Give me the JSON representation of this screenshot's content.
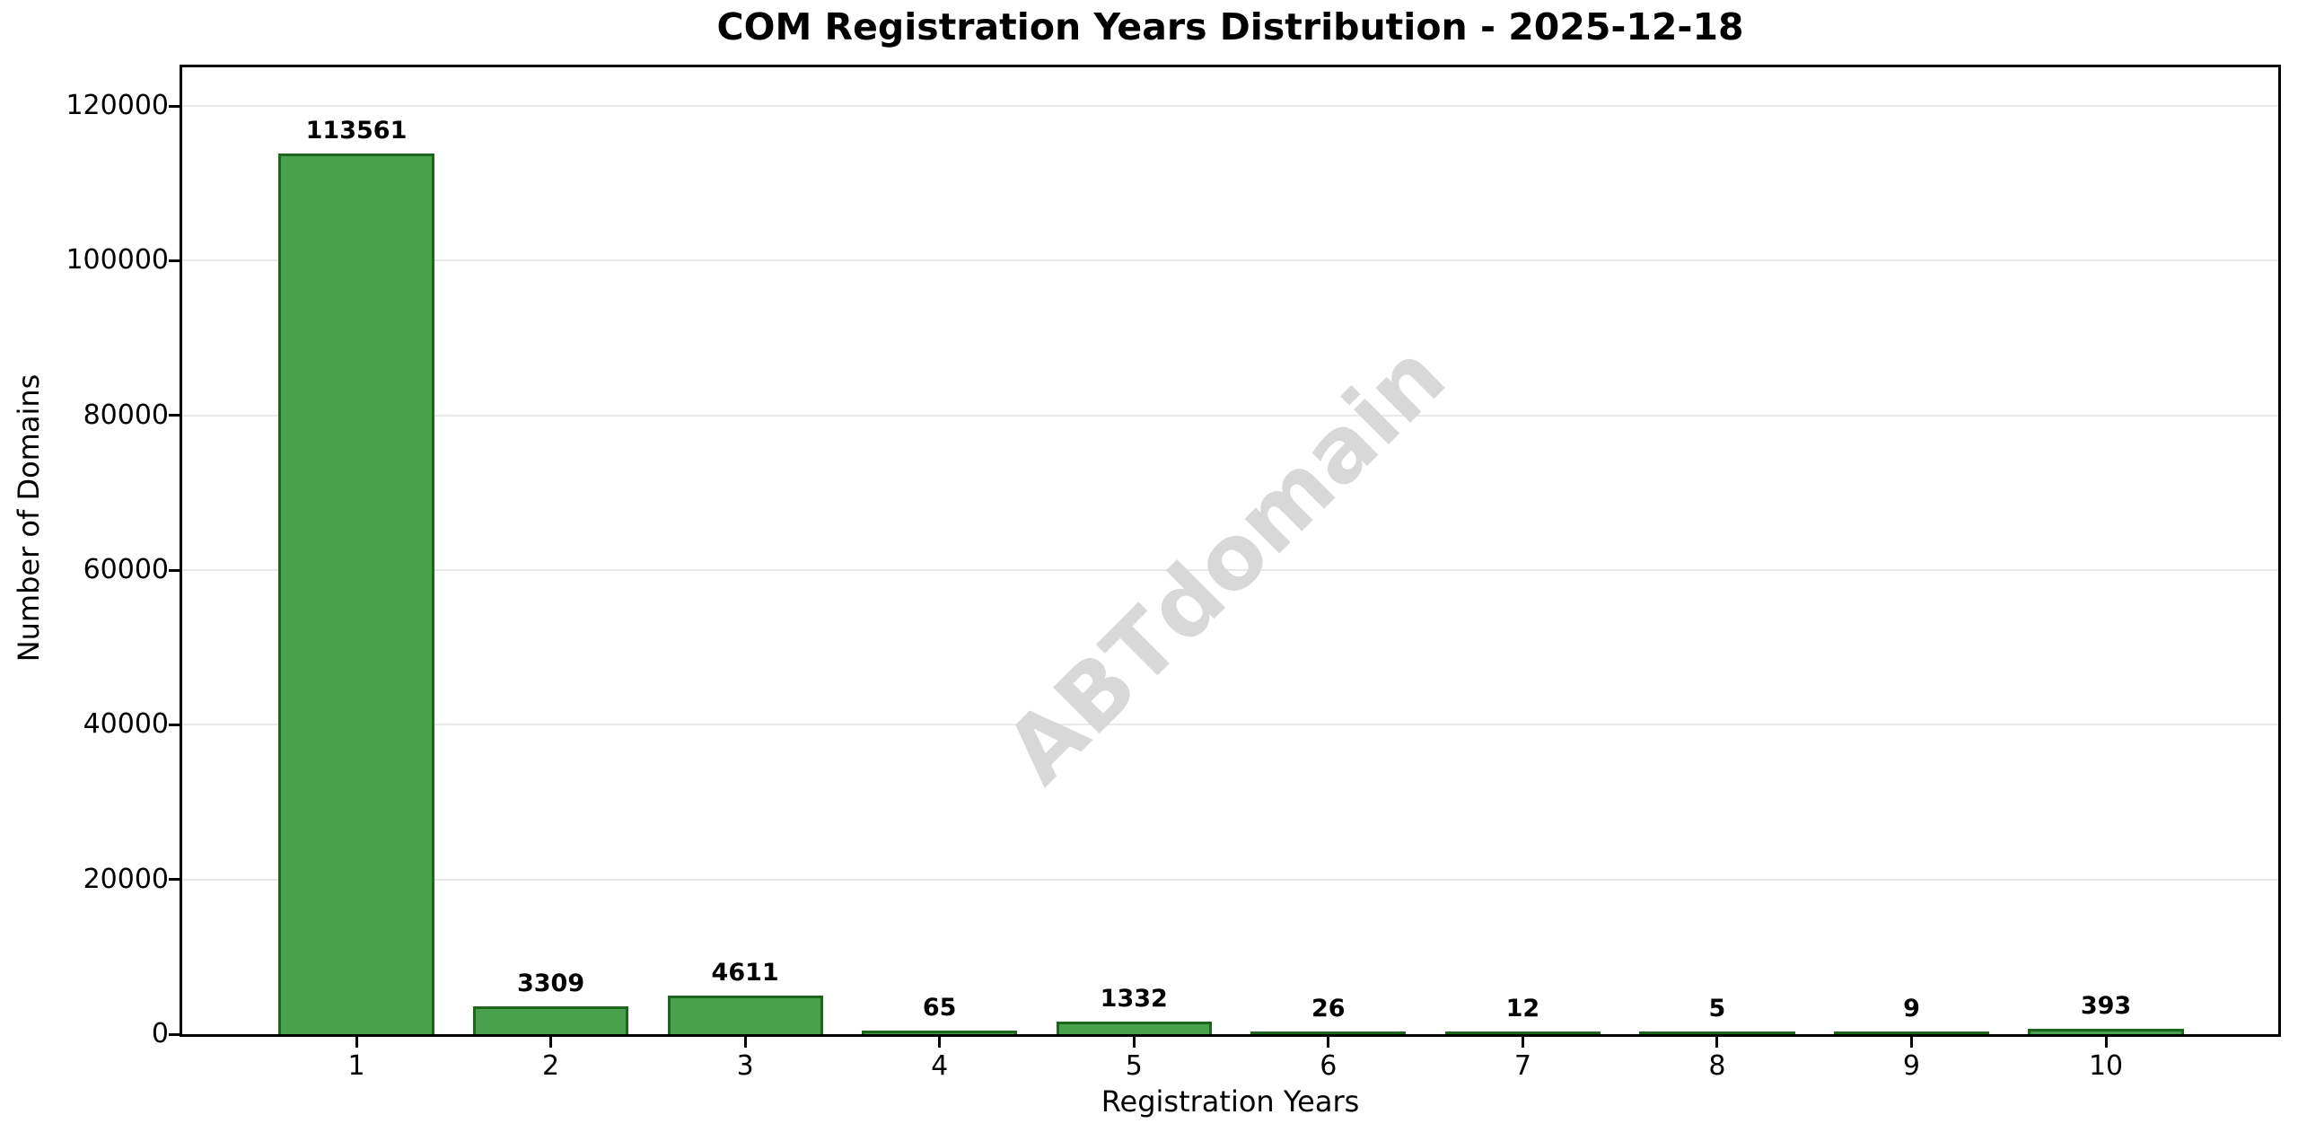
{
  "chart_data": {
    "type": "bar",
    "title": "COM Registration Years Distribution - 2025-12-18",
    "xlabel": "Registration Years",
    "ylabel": "Number of Domains",
    "categories": [
      "1",
      "2",
      "3",
      "4",
      "5",
      "6",
      "7",
      "8",
      "9",
      "10"
    ],
    "values": [
      113561,
      3309,
      4611,
      65,
      1332,
      26,
      12,
      5,
      9,
      393
    ],
    "bar_labels": [
      "113561",
      "3309",
      "4611",
      "65",
      "1332",
      "26",
      "12",
      "5",
      "9",
      "393"
    ],
    "yticks": [
      0,
      20000,
      40000,
      60000,
      80000,
      100000,
      120000
    ],
    "ylim": [
      0,
      125000
    ],
    "grid": "horizontal-light",
    "legend": "none",
    "bar_color": "#4aa14d",
    "bar_edge_color": "#1d661d",
    "grid_color": "#e8e8e8",
    "watermark": "ABTdomain",
    "watermark_color": "#d8d8d8"
  }
}
